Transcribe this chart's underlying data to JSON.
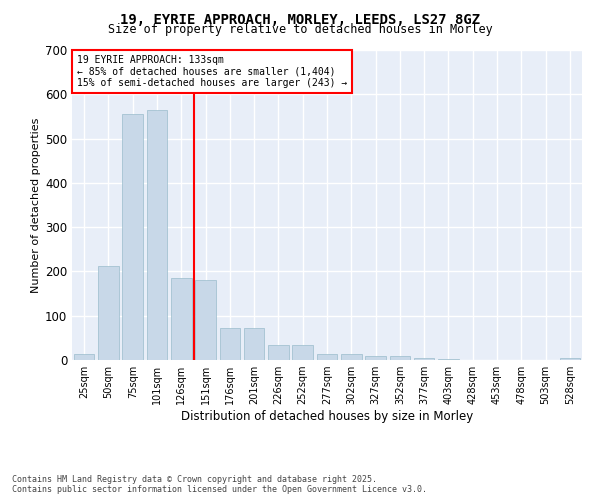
{
  "title_line1": "19, EYRIE APPROACH, MORLEY, LEEDS, LS27 8GZ",
  "title_line2": "Size of property relative to detached houses in Morley",
  "xlabel": "Distribution of detached houses by size in Morley",
  "ylabel": "Number of detached properties",
  "bar_color": "#c8d8e8",
  "bar_edge_color": "#9abccc",
  "bg_color": "#e8eef8",
  "grid_color": "white",
  "vline_color": "red",
  "annotation_text": "19 EYRIE APPROACH: 133sqm\n← 85% of detached houses are smaller (1,404)\n15% of semi-detached houses are larger (243) →",
  "annotation_box_color": "white",
  "annotation_box_edge_color": "red",
  "categories": [
    "25sqm",
    "50sqm",
    "75sqm",
    "101sqm",
    "126sqm",
    "151sqm",
    "176sqm",
    "201sqm",
    "226sqm",
    "252sqm",
    "277sqm",
    "302sqm",
    "327sqm",
    "352sqm",
    "377sqm",
    "403sqm",
    "428sqm",
    "453sqm",
    "478sqm",
    "503sqm",
    "528sqm"
  ],
  "values": [
    13,
    212,
    555,
    565,
    185,
    180,
    73,
    73,
    33,
    33,
    13,
    13,
    8,
    8,
    5,
    3,
    1,
    1,
    1,
    1,
    5
  ],
  "ylim": [
    0,
    700
  ],
  "yticks": [
    0,
    100,
    200,
    300,
    400,
    500,
    600,
    700
  ],
  "footnote1": "Contains HM Land Registry data © Crown copyright and database right 2025.",
  "footnote2": "Contains public sector information licensed under the Open Government Licence v3.0."
}
